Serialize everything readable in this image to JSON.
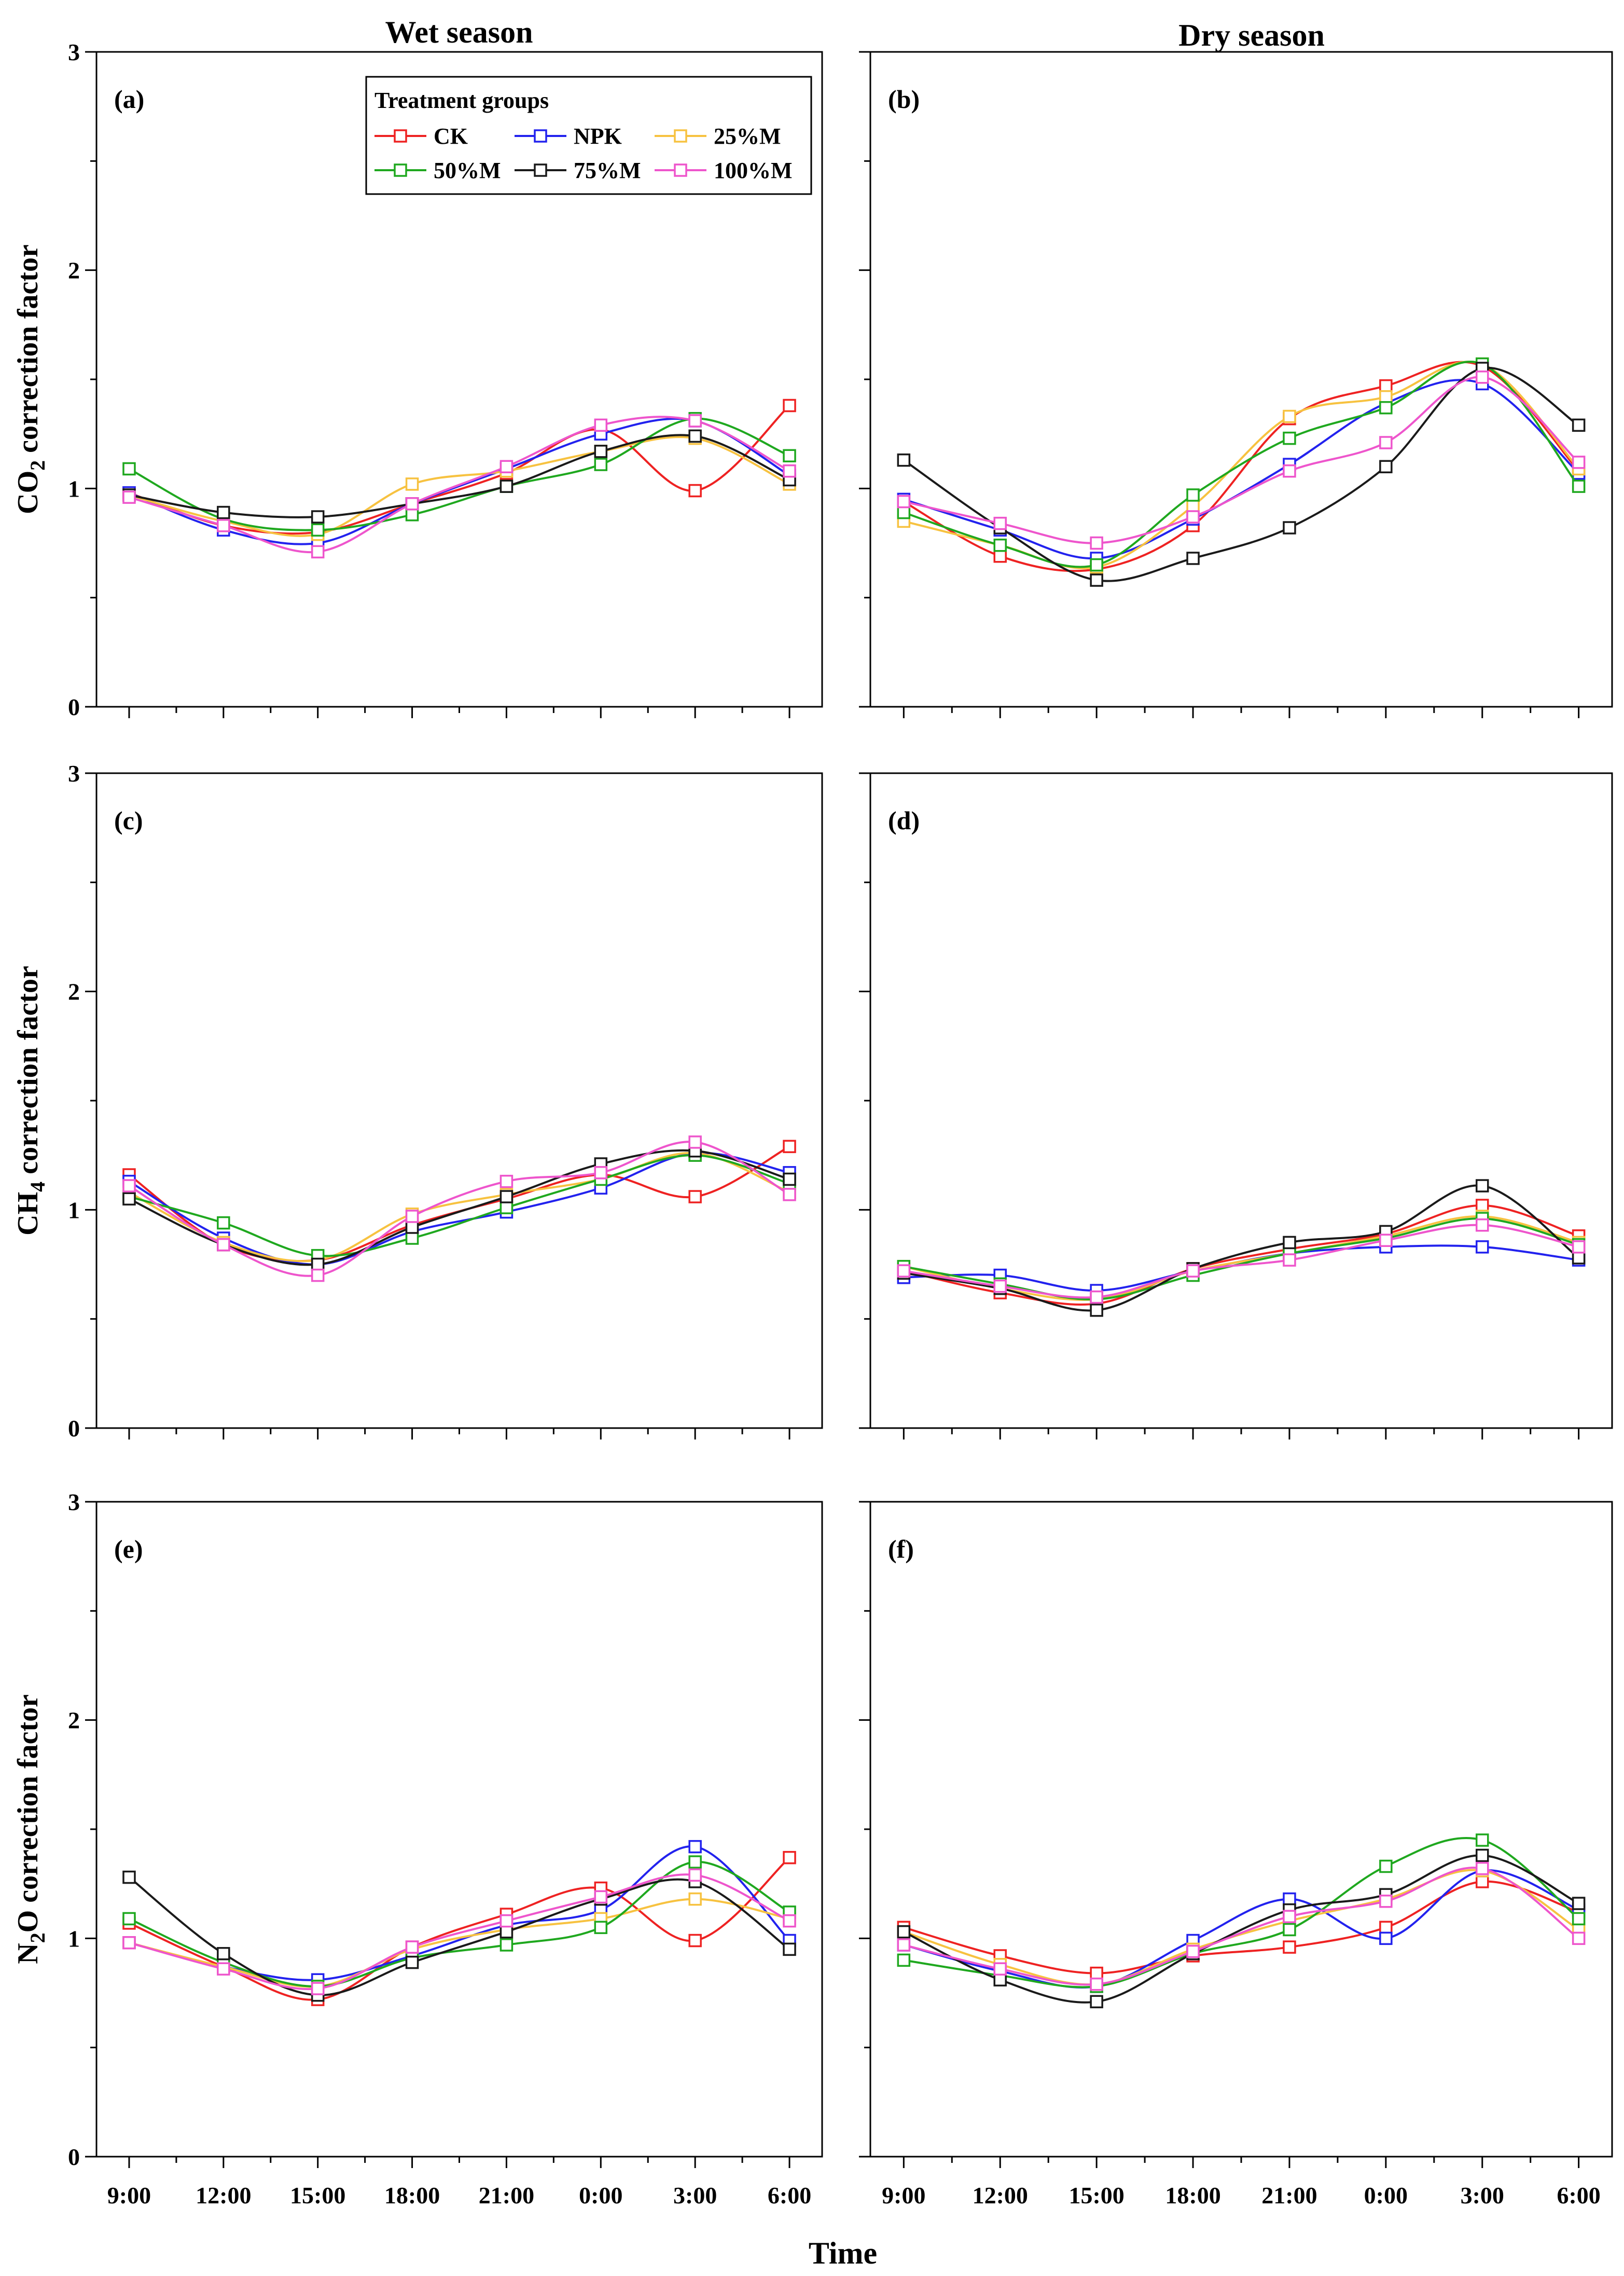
{
  "figure": {
    "column_titles": [
      "Wet season",
      "Dry season"
    ],
    "x_axis_title": "Time",
    "row_y_labels": [
      {
        "base": "CO",
        "sub": "2",
        "rest": " correction factor"
      },
      {
        "base": "CH",
        "sub": "4",
        "rest": " correction factor"
      },
      {
        "base": "N",
        "sub": "2",
        "rest": "O correction factor"
      }
    ],
    "legend_title": "Treatment groups"
  },
  "series_styles": [
    {
      "name": "CK",
      "color": "#ee2222"
    },
    {
      "name": "NPK",
      "color": "#2222ee"
    },
    {
      "name": "25%M",
      "color": "#f7c240"
    },
    {
      "name": "50%M",
      "color": "#1fa81f"
    },
    {
      "name": "75%M",
      "color": "#1a1a1a"
    },
    {
      "name": "100%M",
      "color": "#ee55cc"
    }
  ],
  "chart_data": [
    {
      "type": "line",
      "panel_label": "(a)",
      "season": "Wet season",
      "gas": "CO2",
      "categories": [
        "9:00",
        "12:00",
        "15:00",
        "18:00",
        "21:00",
        "0:00",
        "3:00",
        "6:00"
      ],
      "ylim": [
        0,
        3
      ],
      "yticks": [
        0,
        1,
        2,
        3
      ],
      "show_x_tick_labels": false,
      "show_y_tick_labels": true,
      "xlabel": "",
      "ylabel": "CO2 correction factor",
      "series": [
        {
          "name": "CK",
          "values": [
            0.98,
            0.83,
            0.8,
            0.93,
            1.07,
            1.27,
            0.99,
            1.38
          ]
        },
        {
          "name": "NPK",
          "values": [
            0.98,
            0.81,
            0.75,
            0.93,
            1.09,
            1.25,
            1.31,
            1.06
          ]
        },
        {
          "name": "25%M",
          "values": [
            0.97,
            0.85,
            0.79,
            1.02,
            1.08,
            1.17,
            1.23,
            1.02
          ]
        },
        {
          "name": "50%M",
          "values": [
            1.09,
            0.86,
            0.81,
            0.88,
            1.01,
            1.11,
            1.32,
            1.15
          ]
        },
        {
          "name": "75%M",
          "values": [
            0.97,
            0.89,
            0.87,
            0.93,
            1.01,
            1.17,
            1.24,
            1.04
          ]
        },
        {
          "name": "100%M",
          "values": [
            0.96,
            0.83,
            0.71,
            0.93,
            1.1,
            1.29,
            1.31,
            1.08
          ]
        }
      ]
    },
    {
      "type": "line",
      "panel_label": "(b)",
      "season": "Dry season",
      "gas": "CO2",
      "categories": [
        "9:00",
        "12:00",
        "15:00",
        "18:00",
        "21:00",
        "0:00",
        "3:00",
        "6:00"
      ],
      "ylim": [
        0,
        3
      ],
      "yticks": [
        0,
        1,
        2,
        3
      ],
      "show_x_tick_labels": false,
      "show_y_tick_labels": false,
      "xlabel": "",
      "ylabel": "",
      "series": [
        {
          "name": "CK",
          "values": [
            0.94,
            0.69,
            0.63,
            0.83,
            1.32,
            1.47,
            1.56,
            1.08
          ]
        },
        {
          "name": "NPK",
          "values": [
            0.95,
            0.81,
            0.68,
            0.86,
            1.11,
            1.39,
            1.48,
            1.07
          ]
        },
        {
          "name": "25%M",
          "values": [
            0.85,
            0.74,
            0.64,
            0.92,
            1.33,
            1.42,
            1.57,
            1.09
          ]
        },
        {
          "name": "50%M",
          "values": [
            0.89,
            0.74,
            0.65,
            0.97,
            1.23,
            1.37,
            1.57,
            1.01
          ]
        },
        {
          "name": "75%M",
          "values": [
            1.13,
            0.82,
            0.58,
            0.68,
            0.82,
            1.1,
            1.55,
            1.29
          ]
        },
        {
          "name": "100%M",
          "values": [
            0.94,
            0.84,
            0.75,
            0.87,
            1.08,
            1.21,
            1.51,
            1.12
          ]
        }
      ]
    },
    {
      "type": "line",
      "panel_label": "(c)",
      "season": "Wet season",
      "gas": "CH4",
      "categories": [
        "9:00",
        "12:00",
        "15:00",
        "18:00",
        "21:00",
        "0:00",
        "3:00",
        "6:00"
      ],
      "ylim": [
        0,
        3
      ],
      "yticks": [
        0,
        1,
        2,
        3
      ],
      "show_x_tick_labels": false,
      "show_y_tick_labels": true,
      "xlabel": "",
      "ylabel": "CH4 correction factor",
      "series": [
        {
          "name": "CK",
          "values": [
            1.16,
            0.84,
            0.77,
            0.93,
            1.05,
            1.16,
            1.06,
            1.29
          ]
        },
        {
          "name": "NPK",
          "values": [
            1.13,
            0.87,
            0.75,
            0.9,
            0.99,
            1.1,
            1.26,
            1.17
          ]
        },
        {
          "name": "25%M",
          "values": [
            1.08,
            0.85,
            0.77,
            0.98,
            1.07,
            1.14,
            1.26,
            1.08
          ]
        },
        {
          "name": "50%M",
          "values": [
            1.06,
            0.94,
            0.79,
            0.87,
            1.01,
            1.14,
            1.25,
            1.12
          ]
        },
        {
          "name": "75%M",
          "values": [
            1.05,
            0.84,
            0.75,
            0.92,
            1.06,
            1.21,
            1.27,
            1.14
          ]
        },
        {
          "name": "100%M",
          "values": [
            1.11,
            0.84,
            0.7,
            0.97,
            1.13,
            1.17,
            1.31,
            1.07
          ]
        }
      ]
    },
    {
      "type": "line",
      "panel_label": "(d)",
      "season": "Dry season",
      "gas": "CH4",
      "categories": [
        "9:00",
        "12:00",
        "15:00",
        "18:00",
        "21:00",
        "0:00",
        "3:00",
        "6:00"
      ],
      "ylim": [
        0,
        3
      ],
      "yticks": [
        0,
        1,
        2,
        3
      ],
      "show_x_tick_labels": false,
      "show_y_tick_labels": false,
      "xlabel": "",
      "ylabel": "",
      "series": [
        {
          "name": "CK",
          "values": [
            0.72,
            0.62,
            0.57,
            0.73,
            0.82,
            0.89,
            1.02,
            0.88
          ]
        },
        {
          "name": "NPK",
          "values": [
            0.69,
            0.7,
            0.63,
            0.72,
            0.8,
            0.83,
            0.83,
            0.77
          ]
        },
        {
          "name": "25%M",
          "values": [
            0.74,
            0.64,
            0.59,
            0.72,
            0.8,
            0.88,
            0.97,
            0.85
          ]
        },
        {
          "name": "50%M",
          "values": [
            0.74,
            0.66,
            0.59,
            0.7,
            0.8,
            0.87,
            0.96,
            0.84
          ]
        },
        {
          "name": "75%M",
          "values": [
            0.71,
            0.64,
            0.54,
            0.73,
            0.85,
            0.9,
            1.11,
            0.78
          ]
        },
        {
          "name": "100%M",
          "values": [
            0.72,
            0.65,
            0.6,
            0.72,
            0.77,
            0.86,
            0.93,
            0.83
          ]
        }
      ]
    },
    {
      "type": "line",
      "panel_label": "(e)",
      "season": "Wet season",
      "gas": "N2O",
      "categories": [
        "9:00",
        "12:00",
        "15:00",
        "18:00",
        "21:00",
        "0:00",
        "3:00",
        "6:00"
      ],
      "ylim": [
        0,
        3
      ],
      "yticks": [
        0,
        1,
        2,
        3
      ],
      "show_x_tick_labels": true,
      "show_y_tick_labels": true,
      "xlabel": "Time",
      "ylabel": "N2O correction factor",
      "series": [
        {
          "name": "CK",
          "values": [
            1.07,
            0.87,
            0.72,
            0.96,
            1.11,
            1.23,
            0.99,
            1.37
          ]
        },
        {
          "name": "NPK",
          "values": [
            0.98,
            0.87,
            0.81,
            0.92,
            1.06,
            1.13,
            1.42,
            0.99
          ]
        },
        {
          "name": "25%M",
          "values": [
            0.98,
            0.87,
            0.78,
            0.95,
            1.04,
            1.09,
            1.18,
            1.09
          ]
        },
        {
          "name": "50%M",
          "values": [
            1.09,
            0.89,
            0.78,
            0.91,
            0.97,
            1.05,
            1.35,
            1.12
          ]
        },
        {
          "name": "75%M",
          "values": [
            1.28,
            0.93,
            0.74,
            0.89,
            1.03,
            1.18,
            1.26,
            0.95
          ]
        },
        {
          "name": "100%M",
          "values": [
            0.98,
            0.86,
            0.77,
            0.96,
            1.08,
            1.19,
            1.29,
            1.08
          ]
        }
      ]
    },
    {
      "type": "line",
      "panel_label": "(f)",
      "season": "Dry season",
      "gas": "N2O",
      "categories": [
        "9:00",
        "12:00",
        "15:00",
        "18:00",
        "21:00",
        "0:00",
        "3:00",
        "6:00"
      ],
      "ylim": [
        0,
        3
      ],
      "yticks": [
        0,
        1,
        2,
        3
      ],
      "show_x_tick_labels": true,
      "show_y_tick_labels": false,
      "xlabel": "Time",
      "ylabel": "",
      "series": [
        {
          "name": "CK",
          "values": [
            1.05,
            0.92,
            0.84,
            0.92,
            0.96,
            1.05,
            1.26,
            1.12
          ]
        },
        {
          "name": "NPK",
          "values": [
            0.97,
            0.85,
            0.78,
            0.99,
            1.18,
            1.0,
            1.31,
            1.13
          ]
        },
        {
          "name": "25%M",
          "values": [
            1.03,
            0.88,
            0.79,
            0.95,
            1.08,
            1.18,
            1.31,
            1.04
          ]
        },
        {
          "name": "50%M",
          "values": [
            0.9,
            0.83,
            0.78,
            0.93,
            1.04,
            1.33,
            1.45,
            1.09
          ]
        },
        {
          "name": "75%M",
          "values": [
            1.03,
            0.81,
            0.71,
            0.93,
            1.13,
            1.2,
            1.38,
            1.16
          ]
        },
        {
          "name": "100%M",
          "values": [
            0.97,
            0.86,
            0.79,
            0.94,
            1.1,
            1.17,
            1.32,
            1.0
          ]
        }
      ]
    }
  ]
}
